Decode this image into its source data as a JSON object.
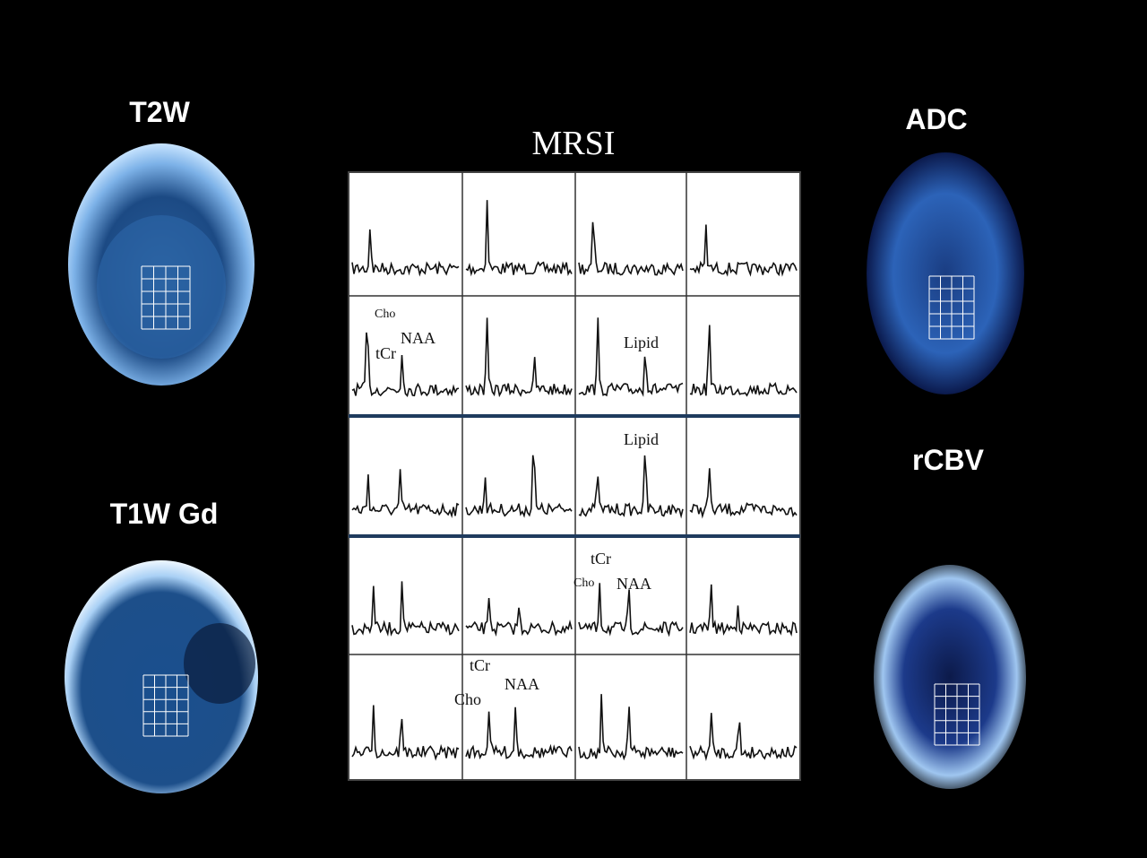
{
  "panels": [
    {
      "label": "T2W"
    },
    {
      "label": "T1W Gd"
    },
    {
      "label": "ADC"
    },
    {
      "label": "rCBV"
    }
  ],
  "mrsi": {
    "title": "MRSI",
    "annotations": [
      {
        "text": "Cho"
      },
      {
        "text": "tCr"
      },
      {
        "text": "NAA"
      },
      {
        "text": "Lipid"
      },
      {
        "text": "Lipid"
      },
      {
        "text": "tCr"
      },
      {
        "text": "Cho"
      },
      {
        "text": "NAA"
      },
      {
        "text": "tCr"
      },
      {
        "text": "Cho"
      },
      {
        "text": "NAA"
      }
    ]
  }
}
